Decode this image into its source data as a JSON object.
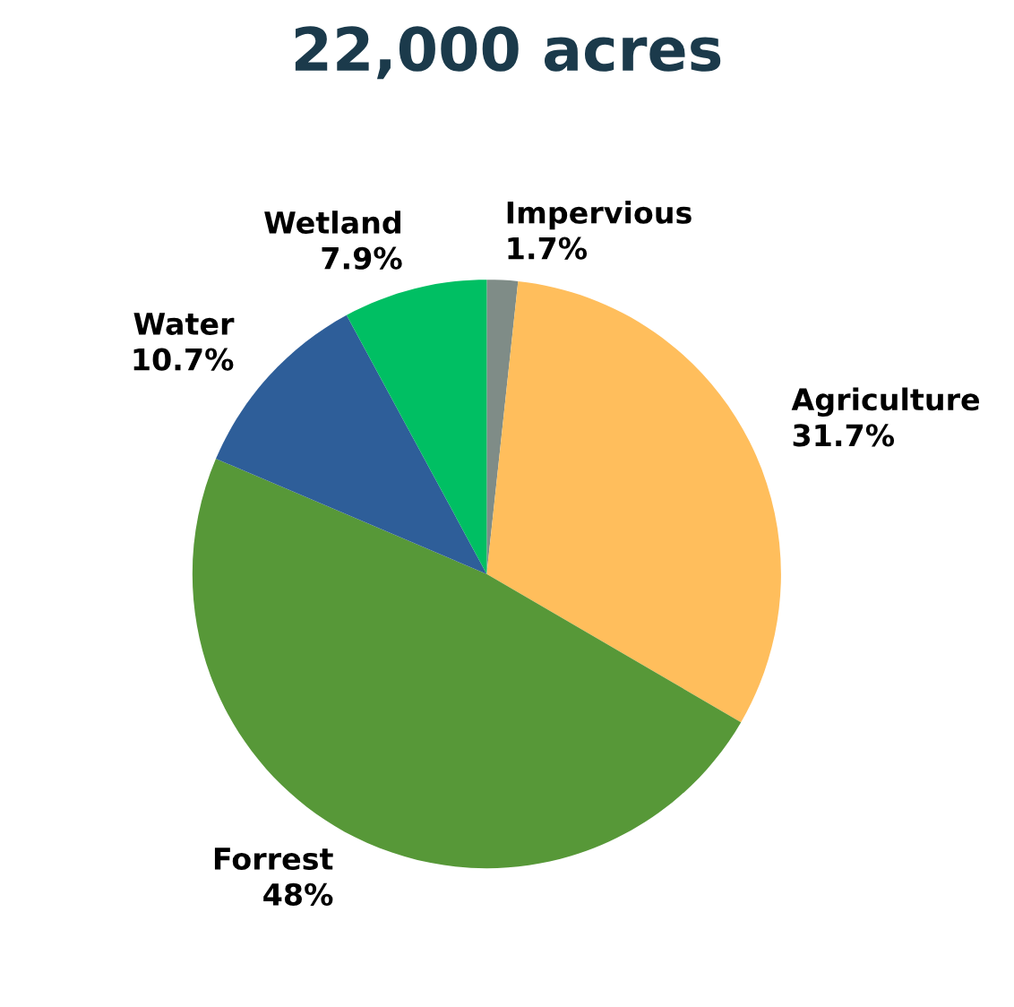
{
  "chart_data": {
    "type": "pie",
    "title": "22,000 acres",
    "categories": [
      "Impervious",
      "Agriculture",
      "Forrest",
      "Water",
      "Wetland"
    ],
    "values": [
      1.7,
      31.7,
      48,
      10.7,
      7.9
    ],
    "value_labels": [
      "1.7%",
      "31.7%",
      "48%",
      "10.7%",
      "7.9%"
    ],
    "colors": [
      "#7f8c87",
      "#ffbe5c",
      "#579838",
      "#2e5e99",
      "#00bf63"
    ],
    "legend": false
  }
}
